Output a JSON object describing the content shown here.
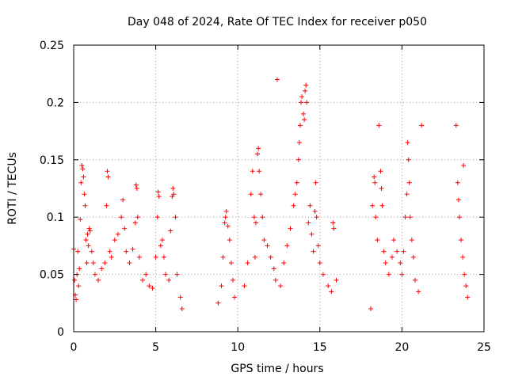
{
  "chart_data": {
    "type": "scatter",
    "title": "Day 048 of 2024, Rate Of TEC Index for receiver p050",
    "xlabel": "GPS time / hours",
    "ylabel": "ROTI / TECUs",
    "xlim": [
      0,
      25
    ],
    "ylim": [
      0,
      0.25
    ],
    "xticks": [
      0,
      5,
      10,
      15,
      20,
      25
    ],
    "xtick_labels": [
      "0",
      "5",
      "10",
      "15",
      "20",
      "25"
    ],
    "yticks": [
      0,
      0.05,
      0.1,
      0.15,
      0.2,
      0.25
    ],
    "ytick_labels": [
      "0",
      "0.05",
      "0.1",
      "0.15",
      "0.2",
      "0.25"
    ],
    "grid": true,
    "marker": "+",
    "color": "#ff0000",
    "series": [
      {
        "name": "ROTI",
        "points": [
          [
            0.0,
            0.072
          ],
          [
            0.05,
            0.045
          ],
          [
            0.1,
            0.032
          ],
          [
            0.15,
            0.028
          ],
          [
            0.2,
            0.05
          ],
          [
            0.25,
            0.07
          ],
          [
            0.3,
            0.04
          ],
          [
            0.35,
            0.055
          ],
          [
            0.4,
            0.098
          ],
          [
            0.45,
            0.13
          ],
          [
            0.5,
            0.145
          ],
          [
            0.55,
            0.142
          ],
          [
            0.6,
            0.135
          ],
          [
            0.65,
            0.12
          ],
          [
            0.7,
            0.11
          ],
          [
            0.75,
            0.08
          ],
          [
            0.8,
            0.06
          ],
          [
            0.85,
            0.085
          ],
          [
            0.9,
            0.075
          ],
          [
            0.95,
            0.09
          ],
          [
            1.0,
            0.088
          ],
          [
            1.1,
            0.07
          ],
          [
            1.2,
            0.06
          ],
          [
            1.3,
            0.05
          ],
          [
            1.5,
            0.045
          ],
          [
            1.7,
            0.055
          ],
          [
            1.9,
            0.06
          ],
          [
            2.0,
            0.11
          ],
          [
            2.05,
            0.14
          ],
          [
            2.1,
            0.135
          ],
          [
            2.2,
            0.07
          ],
          [
            2.3,
            0.065
          ],
          [
            2.5,
            0.08
          ],
          [
            2.7,
            0.085
          ],
          [
            2.9,
            0.1
          ],
          [
            3.0,
            0.115
          ],
          [
            3.1,
            0.09
          ],
          [
            3.2,
            0.07
          ],
          [
            3.4,
            0.06
          ],
          [
            3.6,
            0.072
          ],
          [
            3.75,
            0.095
          ],
          [
            3.8,
            0.128
          ],
          [
            3.85,
            0.125
          ],
          [
            3.9,
            0.1
          ],
          [
            4.0,
            0.065
          ],
          [
            4.2,
            0.045
          ],
          [
            4.4,
            0.05
          ],
          [
            4.6,
            0.04
          ],
          [
            4.8,
            0.038
          ],
          [
            5.0,
            0.065
          ],
          [
            5.1,
            0.1
          ],
          [
            5.15,
            0.122
          ],
          [
            5.2,
            0.118
          ],
          [
            5.3,
            0.075
          ],
          [
            5.4,
            0.08
          ],
          [
            5.5,
            0.065
          ],
          [
            5.6,
            0.05
          ],
          [
            5.8,
            0.045
          ],
          [
            5.9,
            0.088
          ],
          [
            6.0,
            0.118
          ],
          [
            6.05,
            0.125
          ],
          [
            6.1,
            0.12
          ],
          [
            6.2,
            0.1
          ],
          [
            6.3,
            0.05
          ],
          [
            6.5,
            0.03
          ],
          [
            6.6,
            0.02
          ],
          [
            8.8,
            0.025
          ],
          [
            9.0,
            0.04
          ],
          [
            9.1,
            0.065
          ],
          [
            9.2,
            0.095
          ],
          [
            9.25,
            0.1
          ],
          [
            9.3,
            0.105
          ],
          [
            9.4,
            0.092
          ],
          [
            9.5,
            0.08
          ],
          [
            9.6,
            0.06
          ],
          [
            9.7,
            0.045
          ],
          [
            9.8,
            0.03
          ],
          [
            10.4,
            0.04
          ],
          [
            10.6,
            0.06
          ],
          [
            10.8,
            0.12
          ],
          [
            10.9,
            0.14
          ],
          [
            11.0,
            0.1
          ],
          [
            11.05,
            0.065
          ],
          [
            11.1,
            0.095
          ],
          [
            11.2,
            0.155
          ],
          [
            11.25,
            0.16
          ],
          [
            11.3,
            0.14
          ],
          [
            11.4,
            0.12
          ],
          [
            11.5,
            0.1
          ],
          [
            11.6,
            0.08
          ],
          [
            11.8,
            0.075
          ],
          [
            12.0,
            0.065
          ],
          [
            12.2,
            0.055
          ],
          [
            12.3,
            0.045
          ],
          [
            12.4,
            0.22
          ],
          [
            12.6,
            0.04
          ],
          [
            12.8,
            0.06
          ],
          [
            13.0,
            0.075
          ],
          [
            13.2,
            0.09
          ],
          [
            13.4,
            0.11
          ],
          [
            13.5,
            0.12
          ],
          [
            13.6,
            0.13
          ],
          [
            13.7,
            0.15
          ],
          [
            13.75,
            0.165
          ],
          [
            13.8,
            0.18
          ],
          [
            13.85,
            0.2
          ],
          [
            13.9,
            0.205
          ],
          [
            14.0,
            0.19
          ],
          [
            14.05,
            0.185
          ],
          [
            14.1,
            0.21
          ],
          [
            14.15,
            0.215
          ],
          [
            14.2,
            0.2
          ],
          [
            14.3,
            0.095
          ],
          [
            14.4,
            0.11
          ],
          [
            14.5,
            0.085
          ],
          [
            14.6,
            0.07
          ],
          [
            14.7,
            0.105
          ],
          [
            14.75,
            0.13
          ],
          [
            14.8,
            0.1
          ],
          [
            14.9,
            0.075
          ],
          [
            15.0,
            0.06
          ],
          [
            15.2,
            0.05
          ],
          [
            15.5,
            0.04
          ],
          [
            15.7,
            0.035
          ],
          [
            15.8,
            0.095
          ],
          [
            15.85,
            0.09
          ],
          [
            16.0,
            0.045
          ],
          [
            18.1,
            0.02
          ],
          [
            18.2,
            0.11
          ],
          [
            18.3,
            0.135
          ],
          [
            18.35,
            0.13
          ],
          [
            18.4,
            0.1
          ],
          [
            18.5,
            0.08
          ],
          [
            18.6,
            0.18
          ],
          [
            18.7,
            0.14
          ],
          [
            18.75,
            0.125
          ],
          [
            18.8,
            0.11
          ],
          [
            18.9,
            0.07
          ],
          [
            19.0,
            0.06
          ],
          [
            19.2,
            0.05
          ],
          [
            19.4,
            0.065
          ],
          [
            19.5,
            0.08
          ],
          [
            19.7,
            0.07
          ],
          [
            19.9,
            0.06
          ],
          [
            20.0,
            0.05
          ],
          [
            20.1,
            0.07
          ],
          [
            20.2,
            0.1
          ],
          [
            20.3,
            0.12
          ],
          [
            20.35,
            0.165
          ],
          [
            20.4,
            0.15
          ],
          [
            20.45,
            0.13
          ],
          [
            20.5,
            0.1
          ],
          [
            20.6,
            0.08
          ],
          [
            20.7,
            0.065
          ],
          [
            20.8,
            0.045
          ],
          [
            21.0,
            0.035
          ],
          [
            21.2,
            0.18
          ],
          [
            23.3,
            0.18
          ],
          [
            23.4,
            0.13
          ],
          [
            23.45,
            0.115
          ],
          [
            23.5,
            0.1
          ],
          [
            23.6,
            0.08
          ],
          [
            23.7,
            0.065
          ],
          [
            23.75,
            0.145
          ],
          [
            23.8,
            0.05
          ],
          [
            23.9,
            0.04
          ],
          [
            24.0,
            0.03
          ]
        ]
      }
    ]
  }
}
